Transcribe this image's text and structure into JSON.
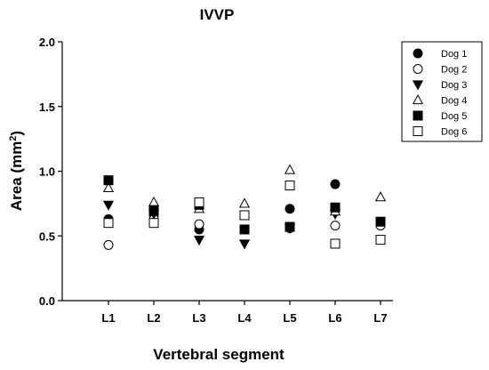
{
  "chart_data": {
    "type": "scatter",
    "title": "IVVP",
    "xlabel": "Vertebral segment",
    "ylabel": "Area (mm²)",
    "ylabel_main": "Area (mm",
    "ylabel_sup": "2",
    "ylabel_close": ")",
    "categories": [
      "L1",
      "L2",
      "L3",
      "L4",
      "L5",
      "L6",
      "L7"
    ],
    "ylim": [
      0.0,
      2.0
    ],
    "yticks": [
      0.0,
      0.5,
      1.0,
      1.5,
      2.0
    ],
    "ytick_labels": [
      "0.0",
      "0.5",
      "1.0",
      "1.5",
      "2.0"
    ],
    "grid": false,
    "legend_position": "top-right",
    "series": [
      {
        "name": "Dog 1",
        "marker": "circle-filled",
        "values": [
          0.63,
          0.66,
          0.55,
          null,
          0.71,
          0.9,
          0.61
        ]
      },
      {
        "name": "Dog 2",
        "marker": "circle-open",
        "values": [
          0.43,
          0.63,
          0.59,
          null,
          0.56,
          0.58,
          0.58
        ]
      },
      {
        "name": "Dog 3",
        "marker": "triangle-down-filled",
        "values": [
          0.74,
          0.67,
          0.47,
          0.44,
          0.56,
          0.67,
          null
        ]
      },
      {
        "name": "Dog 4",
        "marker": "triangle-up-open",
        "values": [
          0.87,
          0.76,
          0.71,
          0.75,
          1.01,
          0.69,
          0.8
        ]
      },
      {
        "name": "Dog 5",
        "marker": "square-filled",
        "values": [
          0.93,
          0.7,
          0.74,
          0.55,
          0.57,
          0.72,
          0.61
        ]
      },
      {
        "name": "Dog 6",
        "marker": "square-open",
        "values": [
          0.6,
          0.6,
          0.76,
          0.66,
          0.89,
          0.44,
          0.47
        ]
      }
    ]
  }
}
